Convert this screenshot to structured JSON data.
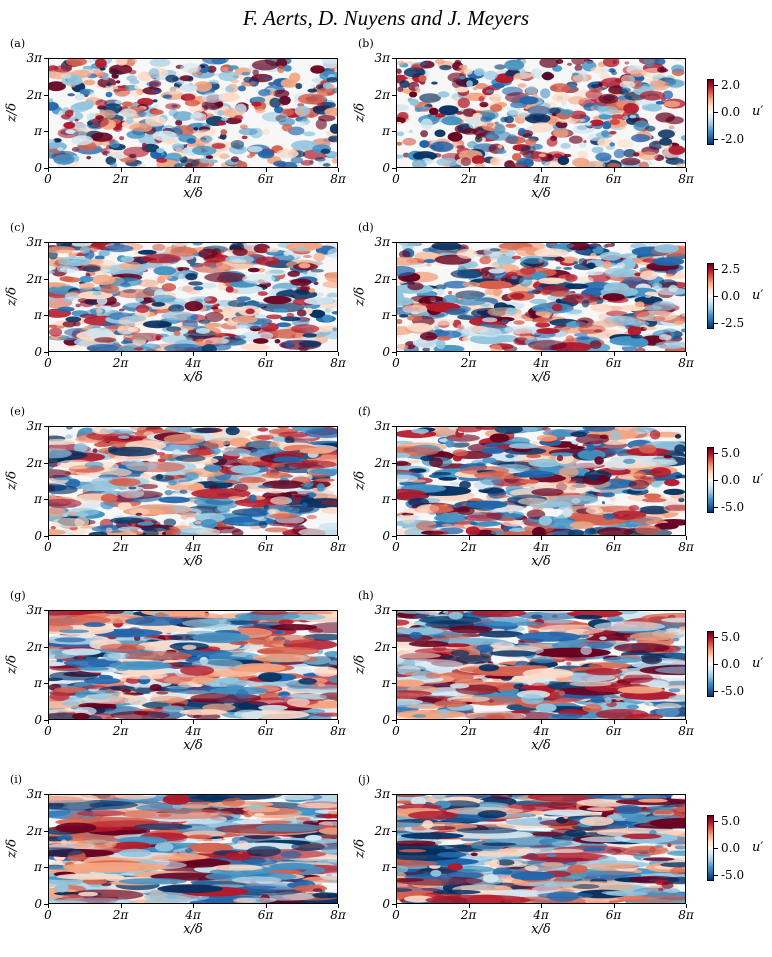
{
  "header": "F. Aerts, D. Nuyens and J. Meyers",
  "axes": {
    "xlabel": "x/δ",
    "ylabel": "z/δ",
    "xticks": [
      "0",
      "2π",
      "4π",
      "6π",
      "8π"
    ],
    "yticks": [
      "0",
      "π",
      "2π",
      "3π"
    ]
  },
  "colorbar_label": "u′",
  "rows": [
    {
      "left_label": "(a)",
      "right_label": "(b)",
      "cbar_ticks": [
        "2.0",
        "0.0",
        "-2.0"
      ],
      "stretch": 1.0
    },
    {
      "left_label": "(c)",
      "right_label": "(d)",
      "cbar_ticks": [
        "2.5",
        "0.0",
        "-2.5"
      ],
      "stretch": 2.0
    },
    {
      "left_label": "(e)",
      "right_label": "(f)",
      "cbar_ticks": [
        "5.0",
        "0.0",
        "-5.0"
      ],
      "stretch": 3.0
    },
    {
      "left_label": "(g)",
      "right_label": "(h)",
      "cbar_ticks": [
        "5.0",
        "0.0",
        "-5.0"
      ],
      "stretch": 4.5
    },
    {
      "left_label": "(i)",
      "right_label": "(j)",
      "cbar_ticks": [
        "5.0",
        "0.0",
        "-5.0"
      ],
      "stretch": 6.0
    }
  ],
  "colormap": [
    "#053061",
    "#2166ac",
    "#4393c3",
    "#92c5de",
    "#d1e5f0",
    "#f7f7f7",
    "#fddbc7",
    "#f4a582",
    "#d6604d",
    "#b2182b",
    "#67001f"
  ]
}
